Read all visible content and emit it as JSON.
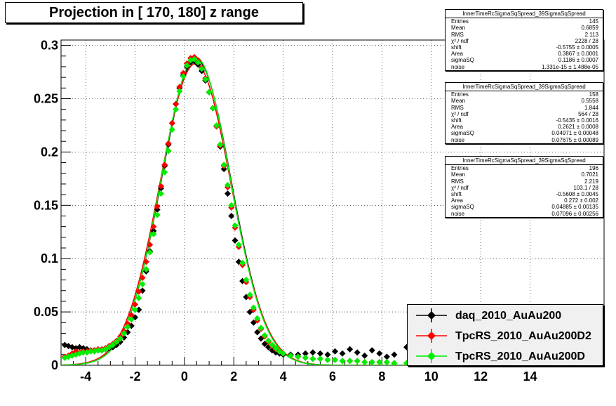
{
  "title": "Projection in [ 170, 180] z range",
  "chart_data": {
    "type": "scatter",
    "title": "Projection in [ 170, 180] z range",
    "xlabel": "",
    "ylabel": "",
    "xlim": [
      -5,
      17
    ],
    "ylim": [
      0,
      0.305
    ],
    "grid": true,
    "x_ticks": [
      "-4",
      "-2",
      "0",
      "2",
      "4",
      "6",
      "8",
      "10",
      "12",
      "14"
    ],
    "x_tick_values": [
      -4,
      -2,
      0,
      2,
      4,
      6,
      8,
      10,
      12,
      14
    ],
    "y_ticks": [
      "0",
      "0.05",
      "0.1",
      "0.15",
      "0.2",
      "0.25",
      "0.3"
    ],
    "y_tick_values": [
      0,
      0.05,
      0.1,
      0.15,
      0.2,
      0.25,
      0.3
    ],
    "legend_position": "bottom-right",
    "series": [
      {
        "name": "daq_2010_AuAu200",
        "color": "#000000",
        "points": [
          [
            -4.85,
            0.019
          ],
          [
            -4.7,
            0.018
          ],
          [
            -4.55,
            0.017
          ],
          [
            -4.4,
            0.016
          ],
          [
            -4.25,
            0.017
          ],
          [
            -4.1,
            0.016
          ],
          [
            -3.95,
            0.015
          ],
          [
            -3.8,
            0.014
          ],
          [
            -3.65,
            0.014
          ],
          [
            -3.5,
            0.014
          ],
          [
            -3.35,
            0.014
          ],
          [
            -3.2,
            0.015
          ],
          [
            -3.05,
            0.016
          ],
          [
            -2.9,
            0.017
          ],
          [
            -2.75,
            0.019
          ],
          [
            -2.6,
            0.022
          ],
          [
            -2.45,
            0.026
          ],
          [
            -2.3,
            0.031
          ],
          [
            -2.15,
            0.037
          ],
          [
            -2.0,
            0.045
          ],
          [
            -1.85,
            0.052
          ],
          [
            -1.7,
            0.07
          ],
          [
            -1.55,
            0.088
          ],
          [
            -1.4,
            0.107
          ],
          [
            -1.25,
            0.126
          ],
          [
            -1.1,
            0.146
          ],
          [
            -0.95,
            0.166
          ],
          [
            -0.8,
            0.187
          ],
          [
            -0.65,
            0.207
          ],
          [
            -0.5,
            0.227
          ],
          [
            -0.35,
            0.245
          ],
          [
            -0.2,
            0.26
          ],
          [
            -0.05,
            0.272
          ],
          [
            0.1,
            0.28
          ],
          [
            0.25,
            0.284
          ],
          [
            0.4,
            0.285
          ],
          [
            0.55,
            0.282
          ],
          [
            0.7,
            0.276
          ],
          [
            0.85,
            0.267
          ],
          [
            1.0,
            0.256
          ],
          [
            1.15,
            0.241
          ],
          [
            1.3,
            0.224
          ],
          [
            1.45,
            0.205
          ],
          [
            1.6,
            0.184
          ],
          [
            1.75,
            0.161
          ],
          [
            1.9,
            0.14
          ],
          [
            2.05,
            0.117
          ],
          [
            2.2,
            0.097
          ],
          [
            2.35,
            0.079
          ],
          [
            2.5,
            0.064
          ],
          [
            2.65,
            0.05
          ],
          [
            2.8,
            0.04
          ],
          [
            2.95,
            0.031
          ],
          [
            3.1,
            0.025
          ],
          [
            3.25,
            0.02
          ],
          [
            3.4,
            0.017
          ],
          [
            3.55,
            0.014
          ],
          [
            3.7,
            0.012
          ],
          [
            3.85,
            0.011
          ],
          [
            4.0,
            0.01
          ],
          [
            4.3,
            0.01
          ],
          [
            4.6,
            0.01
          ],
          [
            4.9,
            0.011
          ],
          [
            5.2,
            0.012
          ],
          [
            5.5,
            0.011
          ],
          [
            5.8,
            0.01
          ],
          [
            6.1,
            0.013
          ],
          [
            6.4,
            0.011
          ],
          [
            6.7,
            0.015
          ],
          [
            7.0,
            0.012
          ],
          [
            7.3,
            0.009
          ],
          [
            7.6,
            0.014
          ],
          [
            7.9,
            0.011
          ],
          [
            8.2,
            0.008
          ],
          [
            8.5,
            0.01
          ],
          [
            9.0,
            0.017
          ],
          [
            9.5,
            0.012
          ]
        ]
      },
      {
        "name": "TpcRS_2010_AuAu200D2",
        "color": "#ff0000",
        "points": [
          [
            -4.85,
            0.008
          ],
          [
            -4.7,
            0.009
          ],
          [
            -4.55,
            0.011
          ],
          [
            -4.4,
            0.013
          ],
          [
            -4.25,
            0.012
          ],
          [
            -4.1,
            0.013
          ],
          [
            -3.95,
            0.013
          ],
          [
            -3.8,
            0.014
          ],
          [
            -3.65,
            0.014
          ],
          [
            -3.5,
            0.015
          ],
          [
            -3.35,
            0.015
          ],
          [
            -3.2,
            0.016
          ],
          [
            -3.05,
            0.018
          ],
          [
            -2.9,
            0.02
          ],
          [
            -2.75,
            0.023
          ],
          [
            -2.6,
            0.027
          ],
          [
            -2.45,
            0.032
          ],
          [
            -2.3,
            0.039
          ],
          [
            -2.15,
            0.047
          ],
          [
            -2.0,
            0.057
          ],
          [
            -1.85,
            0.069
          ],
          [
            -1.7,
            0.082
          ],
          [
            -1.55,
            0.097
          ],
          [
            -1.4,
            0.113
          ],
          [
            -1.25,
            0.13
          ],
          [
            -1.1,
            0.149
          ],
          [
            -0.95,
            0.168
          ],
          [
            -0.8,
            0.188
          ],
          [
            -0.65,
            0.208
          ],
          [
            -0.5,
            0.227
          ],
          [
            -0.35,
            0.245
          ],
          [
            -0.2,
            0.261
          ],
          [
            -0.05,
            0.274
          ],
          [
            0.1,
            0.283
          ],
          [
            0.25,
            0.288
          ],
          [
            0.4,
            0.289
          ],
          [
            0.55,
            0.286
          ],
          [
            0.7,
            0.279
          ],
          [
            0.85,
            0.269
          ],
          [
            1.0,
            0.256
          ],
          [
            1.15,
            0.241
          ],
          [
            1.3,
            0.224
          ],
          [
            1.45,
            0.206
          ],
          [
            1.6,
            0.187
          ],
          [
            1.75,
            0.167
          ],
          [
            1.9,
            0.148
          ],
          [
            2.05,
            0.129
          ],
          [
            2.2,
            0.111
          ],
          [
            2.35,
            0.094
          ],
          [
            2.5,
            0.078
          ],
          [
            2.65,
            0.064
          ],
          [
            2.8,
            0.052
          ],
          [
            2.95,
            0.042
          ],
          [
            3.1,
            0.034
          ],
          [
            3.25,
            0.027
          ],
          [
            3.4,
            0.022
          ],
          [
            3.55,
            0.018
          ],
          [
            3.7,
            0.015
          ],
          [
            3.85,
            0.013
          ],
          [
            4.0,
            0.011
          ],
          [
            4.3,
            0.009
          ],
          [
            4.6,
            0.008
          ],
          [
            4.9,
            0.007
          ],
          [
            5.2,
            0.006
          ],
          [
            5.5,
            0.006
          ],
          [
            5.8,
            0.005
          ],
          [
            6.1,
            0.005
          ],
          [
            6.4,
            0.004
          ],
          [
            6.7,
            0.004
          ],
          [
            7.0,
            0.004
          ],
          [
            7.3,
            0.003
          ],
          [
            7.6,
            0.003
          ],
          [
            7.9,
            0.003
          ],
          [
            8.2,
            0.003
          ],
          [
            8.5,
            0.002
          ],
          [
            9.0,
            0.002
          ],
          [
            9.5,
            0.002
          ]
        ]
      },
      {
        "name": "TpcRS_2010_AuAu200D",
        "color": "#00ee00",
        "points": [
          [
            -4.85,
            0.007
          ],
          [
            -4.7,
            0.008
          ],
          [
            -4.55,
            0.009
          ],
          [
            -4.4,
            0.01
          ],
          [
            -4.25,
            0.011
          ],
          [
            -4.1,
            0.012
          ],
          [
            -3.95,
            0.012
          ],
          [
            -3.8,
            0.013
          ],
          [
            -3.65,
            0.013
          ],
          [
            -3.5,
            0.014
          ],
          [
            -3.35,
            0.014
          ],
          [
            -3.2,
            0.015
          ],
          [
            -3.05,
            0.017
          ],
          [
            -2.9,
            0.019
          ],
          [
            -2.75,
            0.022
          ],
          [
            -2.6,
            0.025
          ],
          [
            -2.45,
            0.03
          ],
          [
            -2.3,
            0.036
          ],
          [
            -2.15,
            0.043
          ],
          [
            -2.0,
            0.052
          ],
          [
            -1.85,
            0.063
          ],
          [
            -1.7,
            0.076
          ],
          [
            -1.55,
            0.09
          ],
          [
            -1.4,
            0.106
          ],
          [
            -1.25,
            0.123
          ],
          [
            -1.1,
            0.141
          ],
          [
            -0.95,
            0.161
          ],
          [
            -0.8,
            0.181
          ],
          [
            -0.65,
            0.201
          ],
          [
            -0.5,
            0.221
          ],
          [
            -0.35,
            0.24
          ],
          [
            -0.2,
            0.257
          ],
          [
            -0.05,
            0.271
          ],
          [
            0.1,
            0.281
          ],
          [
            0.25,
            0.286
          ],
          [
            0.4,
            0.287
          ],
          [
            0.55,
            0.284
          ],
          [
            0.7,
            0.278
          ],
          [
            0.85,
            0.268
          ],
          [
            1.0,
            0.256
          ],
          [
            1.15,
            0.241
          ],
          [
            1.3,
            0.225
          ],
          [
            1.45,
            0.207
          ],
          [
            1.6,
            0.188
          ],
          [
            1.75,
            0.169
          ],
          [
            1.9,
            0.15
          ],
          [
            2.05,
            0.131
          ],
          [
            2.2,
            0.113
          ],
          [
            2.35,
            0.096
          ],
          [
            2.5,
            0.08
          ],
          [
            2.65,
            0.066
          ],
          [
            2.8,
            0.054
          ],
          [
            2.95,
            0.044
          ],
          [
            3.1,
            0.035
          ],
          [
            3.25,
            0.028
          ],
          [
            3.4,
            0.023
          ],
          [
            3.55,
            0.019
          ],
          [
            3.7,
            0.016
          ],
          [
            3.85,
            0.013
          ],
          [
            4.0,
            0.011
          ],
          [
            4.3,
            0.009
          ],
          [
            4.6,
            0.008
          ],
          [
            4.9,
            0.007
          ],
          [
            5.2,
            0.006
          ],
          [
            5.5,
            0.006
          ],
          [
            5.8,
            0.005
          ],
          [
            6.1,
            0.005
          ],
          [
            6.4,
            0.004
          ],
          [
            6.7,
            0.004
          ],
          [
            7.0,
            0.004
          ],
          [
            7.3,
            0.003
          ],
          [
            7.6,
            0.003
          ],
          [
            7.9,
            0.003
          ],
          [
            8.2,
            0.003
          ],
          [
            8.5,
            0.002
          ],
          [
            9.0,
            0.002
          ],
          [
            9.5,
            0.002
          ]
        ]
      }
    ],
    "fits": [
      {
        "color": "#000000",
        "area": 0.3867,
        "shift": 0.5755,
        "sigma": 1.41
      },
      {
        "color": "#ff0000",
        "area": 0.2621,
        "shift": 0.5435,
        "sigma": 1.43
      },
      {
        "color": "#00ee00",
        "area": 0.272,
        "shift": 0.5608,
        "sigma": 1.4
      }
    ]
  },
  "stats_boxes": [
    {
      "name": "InnerTimeRcSigmaSqSpread_39SigmaSqSpread",
      "rows": [
        {
          "label": "Entries",
          "value": "145"
        },
        {
          "label": "Mean",
          "value": "0.6859"
        },
        {
          "label": "RMS",
          "value": "2.113"
        },
        {
          "label": "χ² / ndf",
          "value": "2228 / 28"
        },
        {
          "label": "shift",
          "value": "-0.5755 ± 0.0005"
        },
        {
          "label": "Area",
          "value": "0.3867 ± 0.0001"
        },
        {
          "label": "sigmaSQ",
          "value": "0.1186 ± 0.0007"
        },
        {
          "label": "noise",
          "value": "1.331e-15 ± 1.488e-05"
        }
      ]
    },
    {
      "name": "InnerTimeRcSigmaSqSpread_39SigmaSqSpread",
      "rows": [
        {
          "label": "Entries",
          "value": "158"
        },
        {
          "label": "Mean",
          "value": "0.5558"
        },
        {
          "label": "RMS",
          "value": "1.844"
        },
        {
          "label": "χ² / ndf",
          "value": "564 / 28"
        },
        {
          "label": "shift",
          "value": "-0.5435 ± 0.0016"
        },
        {
          "label": "Area",
          "value": "0.2621 ± 0.0008"
        },
        {
          "label": "sigmaSQ",
          "value": "0.04971 ± 0.00048"
        },
        {
          "label": "noise",
          "value": "0.07675 ± 0.00089"
        }
      ]
    },
    {
      "name": "InnerTimeRcSigmaSqSpread_39SigmaSqSpread",
      "rows": [
        {
          "label": "Entries",
          "value": "196"
        },
        {
          "label": "Mean",
          "value": "0.7021"
        },
        {
          "label": "RMS",
          "value": "2.219"
        },
        {
          "label": "χ² / ndf",
          "value": "103.1 / 28"
        },
        {
          "label": "shift",
          "value": "-0.5608 ± 0.0045"
        },
        {
          "label": "Area",
          "value": "0.272 ± 0.002"
        },
        {
          "label": "sigmaSQ",
          "value": "0.04885 ± 0.00135"
        },
        {
          "label": "noise",
          "value": "0.07096 ± 0.00256"
        }
      ]
    }
  ],
  "legend": [
    {
      "label": "daq_2010_AuAu200",
      "color": "#000000"
    },
    {
      "label": "TpcRS_2010_AuAu200D2",
      "color": "#ff0000"
    },
    {
      "label": "TpcRS_2010_AuAu200D",
      "color": "#00ee00"
    }
  ]
}
